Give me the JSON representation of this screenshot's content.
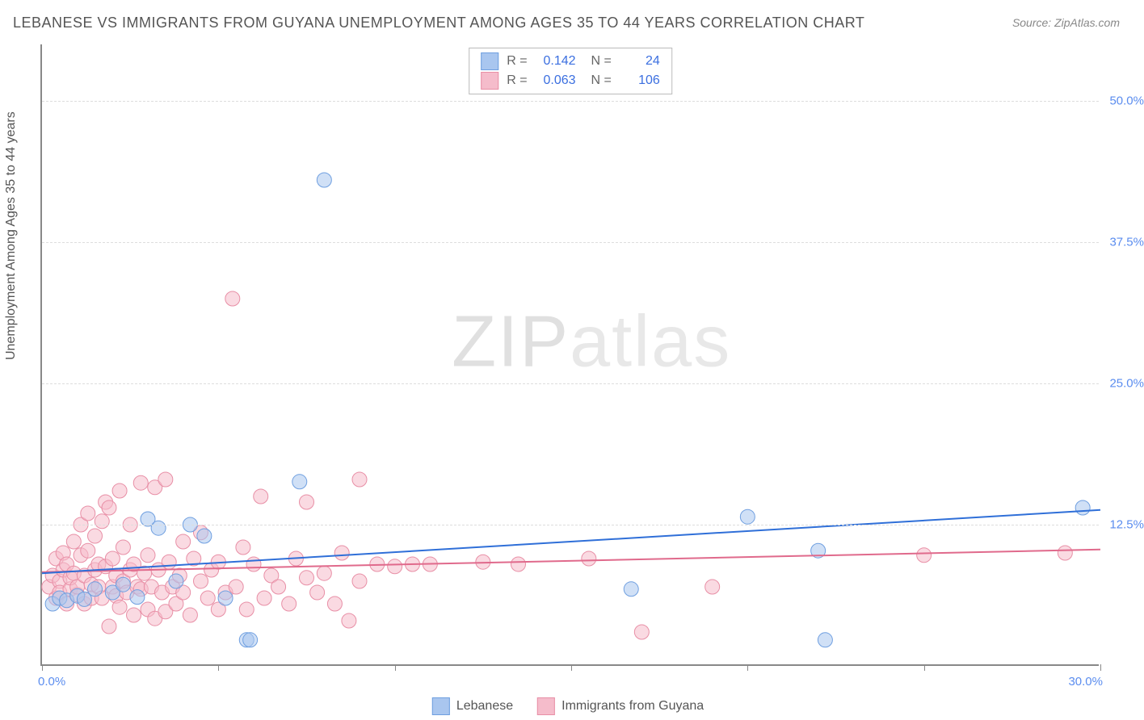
{
  "title": "LEBANESE VS IMMIGRANTS FROM GUYANA UNEMPLOYMENT AMONG AGES 35 TO 44 YEARS CORRELATION CHART",
  "source": "Source: ZipAtlas.com",
  "y_axis_title": "Unemployment Among Ages 35 to 44 years",
  "watermark_bold": "ZIP",
  "watermark_light": "atlas",
  "chart": {
    "type": "scatter",
    "xlim": [
      0,
      30
    ],
    "ylim": [
      0,
      55
    ],
    "x_min_label": "0.0%",
    "x_max_label": "30.0%",
    "y_ticks": [
      {
        "v": 12.5,
        "label": "12.5%"
      },
      {
        "v": 25.0,
        "label": "25.0%"
      },
      {
        "v": 37.5,
        "label": "37.5%"
      },
      {
        "v": 50.0,
        "label": "50.0%"
      }
    ],
    "x_tick_positions": [
      0,
      5,
      10,
      15,
      20,
      25,
      30
    ],
    "marker_radius": 9,
    "marker_opacity": 0.55,
    "background_color": "#ffffff",
    "grid_color": "#dddddd",
    "series": [
      {
        "name": "Lebanese",
        "color_fill": "#a9c6ef",
        "color_stroke": "#6f9fe0",
        "R": "0.142",
        "N": "24",
        "trend": {
          "x1": 0,
          "y1": 8.2,
          "x2": 30,
          "y2": 13.8,
          "color": "#2f6fd8",
          "width": 2
        },
        "points": [
          [
            0.3,
            5.5
          ],
          [
            0.5,
            6.0
          ],
          [
            0.7,
            5.8
          ],
          [
            1.0,
            6.2
          ],
          [
            1.2,
            5.9
          ],
          [
            1.5,
            6.8
          ],
          [
            2.0,
            6.5
          ],
          [
            2.3,
            7.2
          ],
          [
            2.7,
            6.1
          ],
          [
            3.0,
            13.0
          ],
          [
            3.3,
            12.2
          ],
          [
            3.8,
            7.5
          ],
          [
            4.2,
            12.5
          ],
          [
            4.6,
            11.5
          ],
          [
            5.2,
            6.0
          ],
          [
            5.8,
            2.3
          ],
          [
            5.9,
            2.3
          ],
          [
            7.3,
            16.3
          ],
          [
            8.0,
            43.0
          ],
          [
            16.7,
            6.8
          ],
          [
            20.0,
            13.2
          ],
          [
            22.0,
            10.2
          ],
          [
            22.2,
            2.3
          ],
          [
            29.5,
            14.0
          ]
        ]
      },
      {
        "name": "Immigrants from Guyana",
        "color_fill": "#f5bccb",
        "color_stroke": "#e88fa6",
        "R": "0.063",
        "N": "106",
        "trend": {
          "x1": 0,
          "y1": 8.3,
          "x2": 30,
          "y2": 10.3,
          "color": "#e06a8c",
          "width": 2
        },
        "points": [
          [
            0.2,
            7.0
          ],
          [
            0.3,
            8.0
          ],
          [
            0.4,
            6.0
          ],
          [
            0.4,
            9.5
          ],
          [
            0.5,
            7.5
          ],
          [
            0.5,
            6.5
          ],
          [
            0.6,
            10.0
          ],
          [
            0.6,
            8.5
          ],
          [
            0.7,
            5.5
          ],
          [
            0.7,
            9.0
          ],
          [
            0.8,
            6.8
          ],
          [
            0.8,
            7.8
          ],
          [
            0.9,
            11.0
          ],
          [
            0.9,
            8.2
          ],
          [
            1.0,
            6.3
          ],
          [
            1.0,
            7.0
          ],
          [
            1.1,
            9.8
          ],
          [
            1.1,
            12.5
          ],
          [
            1.2,
            5.5
          ],
          [
            1.2,
            8.0
          ],
          [
            1.3,
            13.5
          ],
          [
            1.3,
            10.2
          ],
          [
            1.4,
            7.2
          ],
          [
            1.4,
            6.0
          ],
          [
            1.5,
            8.5
          ],
          [
            1.5,
            11.5
          ],
          [
            1.6,
            7.0
          ],
          [
            1.6,
            9.0
          ],
          [
            1.7,
            6.0
          ],
          [
            1.7,
            12.8
          ],
          [
            1.8,
            14.5
          ],
          [
            1.8,
            8.8
          ],
          [
            1.9,
            14.0
          ],
          [
            1.9,
            3.5
          ],
          [
            2.0,
            7.0
          ],
          [
            2.0,
            9.5
          ],
          [
            2.1,
            6.2
          ],
          [
            2.1,
            8.0
          ],
          [
            2.2,
            15.5
          ],
          [
            2.2,
            5.2
          ],
          [
            2.3,
            10.5
          ],
          [
            2.3,
            7.5
          ],
          [
            2.4,
            6.5
          ],
          [
            2.5,
            8.5
          ],
          [
            2.5,
            12.5
          ],
          [
            2.6,
            4.5
          ],
          [
            2.6,
            9.0
          ],
          [
            2.7,
            7.0
          ],
          [
            2.8,
            16.2
          ],
          [
            2.8,
            6.8
          ],
          [
            2.9,
            8.2
          ],
          [
            3.0,
            5.0
          ],
          [
            3.0,
            9.8
          ],
          [
            3.1,
            7.0
          ],
          [
            3.2,
            15.8
          ],
          [
            3.2,
            4.2
          ],
          [
            3.3,
            8.5
          ],
          [
            3.4,
            6.5
          ],
          [
            3.5,
            16.5
          ],
          [
            3.5,
            4.8
          ],
          [
            3.6,
            9.2
          ],
          [
            3.7,
            7.0
          ],
          [
            3.8,
            5.5
          ],
          [
            3.9,
            8.0
          ],
          [
            4.0,
            6.5
          ],
          [
            4.0,
            11.0
          ],
          [
            4.2,
            4.5
          ],
          [
            4.3,
            9.5
          ],
          [
            4.5,
            7.5
          ],
          [
            4.5,
            11.8
          ],
          [
            4.7,
            6.0
          ],
          [
            4.8,
            8.5
          ],
          [
            5.0,
            5.0
          ],
          [
            5.0,
            9.2
          ],
          [
            5.2,
            6.5
          ],
          [
            5.4,
            32.5
          ],
          [
            5.5,
            7.0
          ],
          [
            5.7,
            10.5
          ],
          [
            5.8,
            5.0
          ],
          [
            6.0,
            9.0
          ],
          [
            6.2,
            15.0
          ],
          [
            6.3,
            6.0
          ],
          [
            6.5,
            8.0
          ],
          [
            6.7,
            7.0
          ],
          [
            7.0,
            5.5
          ],
          [
            7.2,
            9.5
          ],
          [
            7.5,
            7.8
          ],
          [
            7.5,
            14.5
          ],
          [
            7.8,
            6.5
          ],
          [
            8.0,
            8.2
          ],
          [
            8.3,
            5.5
          ],
          [
            8.5,
            10.0
          ],
          [
            8.7,
            4.0
          ],
          [
            9.0,
            7.5
          ],
          [
            9.0,
            16.5
          ],
          [
            9.5,
            9.0
          ],
          [
            10.0,
            8.8
          ],
          [
            10.5,
            9.0
          ],
          [
            11.0,
            9.0
          ],
          [
            12.5,
            9.2
          ],
          [
            13.5,
            9.0
          ],
          [
            15.5,
            9.5
          ],
          [
            17.0,
            3.0
          ],
          [
            19.0,
            7.0
          ],
          [
            25.0,
            9.8
          ],
          [
            29.0,
            10.0
          ]
        ]
      }
    ]
  },
  "legend_bottom": [
    {
      "label": "Lebanese",
      "fill": "#a9c6ef",
      "stroke": "#6f9fe0"
    },
    {
      "label": "Immigrants from Guyana",
      "fill": "#f5bccb",
      "stroke": "#e88fa6"
    }
  ]
}
